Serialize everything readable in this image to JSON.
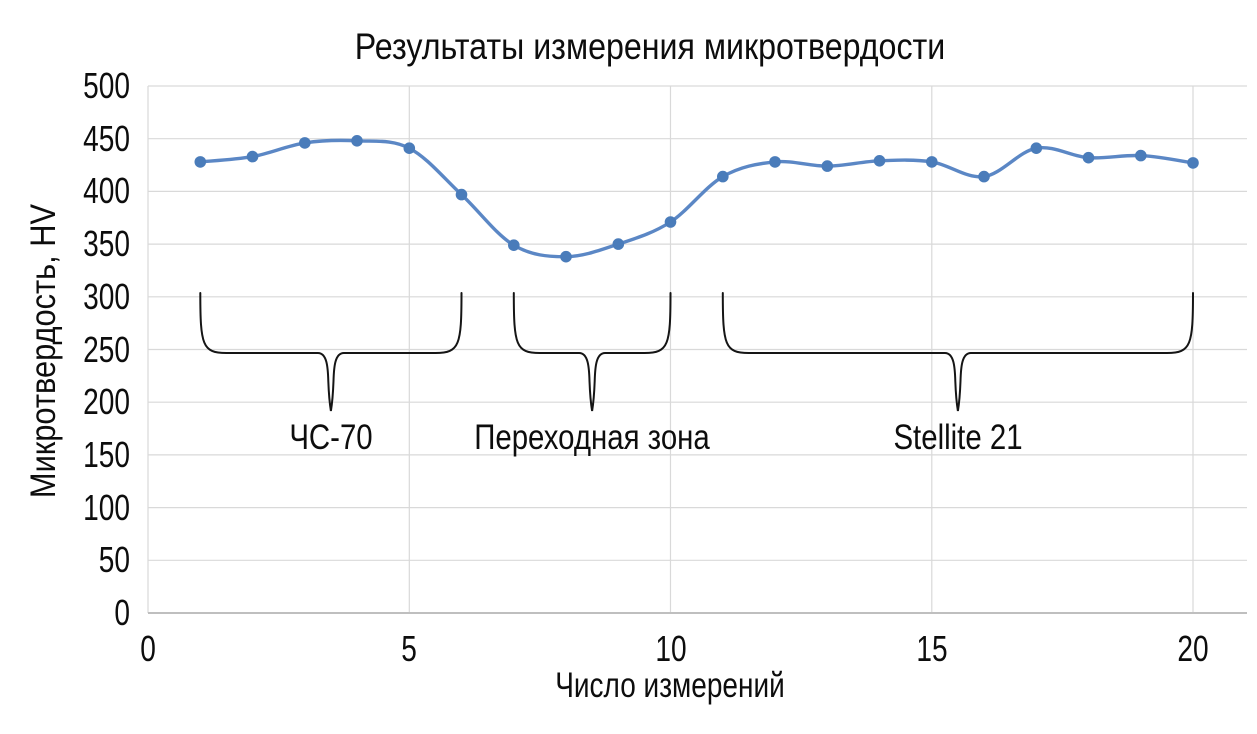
{
  "chart_data": {
    "type": "line",
    "title": "Результаты измерения микротвердости",
    "xlabel": "Число измерений",
    "ylabel": "Микротвердость, HV",
    "x": [
      1,
      2,
      3,
      4,
      5,
      6,
      7,
      8,
      9,
      10,
      11,
      12,
      13,
      14,
      15,
      16,
      17,
      18,
      19,
      20
    ],
    "series": [
      {
        "name": "Микротвердость, HV",
        "values": [
          428,
          433,
          446,
          448,
          441,
          397,
          349,
          338,
          350,
          371,
          414,
          428,
          424,
          429,
          428,
          414,
          441,
          432,
          434,
          427
        ]
      }
    ],
    "xticks": [
      0,
      5,
      10,
      15,
      20
    ],
    "yticks": [
      0,
      50,
      100,
      150,
      200,
      250,
      300,
      350,
      400,
      450,
      500
    ],
    "xlim": [
      0,
      21
    ],
    "ylim": [
      0,
      500
    ],
    "grid": true,
    "legend_position": "none",
    "line_smooth": true,
    "line_color": "#5b87c5",
    "marker_color": "#4a7cba",
    "gridline_color": "#d9d9d9",
    "axis_color": "#bfbfbf",
    "annotations": [
      {
        "label": "ЧС-70",
        "from_x": 1,
        "to_x": 6
      },
      {
        "label": "Переходная зона",
        "from_x": 7,
        "to_x": 10
      },
      {
        "label": "Stellite 21",
        "from_x": 11,
        "to_x": 20
      }
    ]
  }
}
